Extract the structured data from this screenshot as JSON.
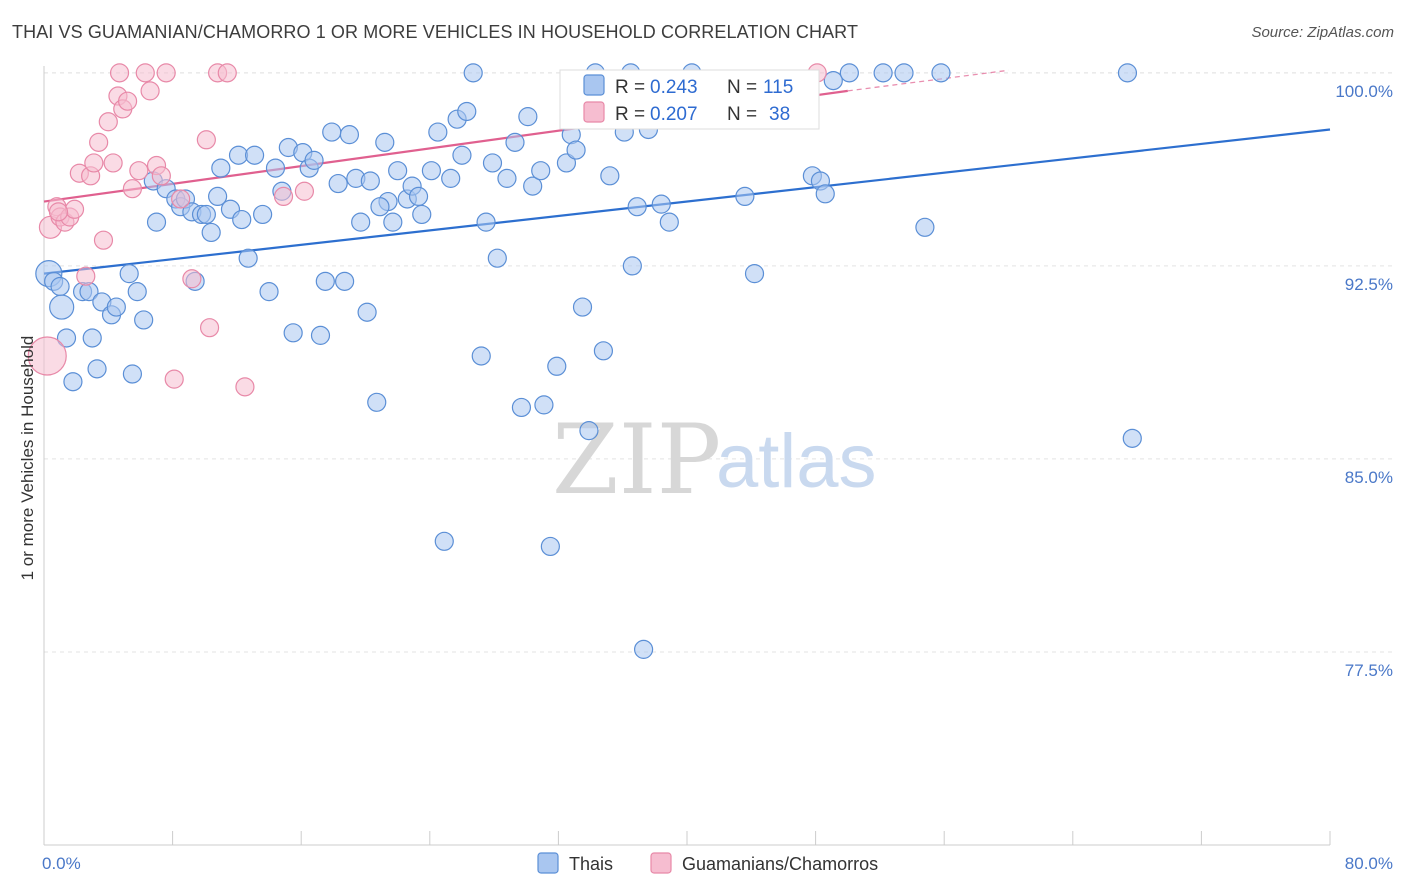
{
  "header": {
    "title": "THAI VS GUAMANIAN/CHAMORRO 1 OR MORE VEHICLES IN HOUSEHOLD CORRELATION CHART",
    "source": "Source: ZipAtlas.com"
  },
  "watermark": {
    "zip": "ZIP",
    "atlas": "atlas"
  },
  "colors": {
    "thai_fill": "#a9c6f0",
    "thai_stroke": "#5b8fd6",
    "thai_line": "#2d6fcf",
    "guam_fill": "#f6bdd0",
    "guam_stroke": "#e889a8",
    "guam_line": "#e0608f",
    "grid": "#e3e3e3",
    "axis": "#cccccc"
  },
  "stats": {
    "thai": {
      "r_label": "R =",
      "r_value": "0.243",
      "n_label": "N =",
      "n_value": "115"
    },
    "guam": {
      "r_label": "R =",
      "r_value": "0.207",
      "n_label": "N =",
      "n_value": "38"
    }
  },
  "chart_data": {
    "type": "scatter",
    "title": "THAI VS GUAMANIAN/CHAMORRO 1 OR MORE VEHICLES IN HOUSEHOLD CORRELATION CHART",
    "xlabel": "",
    "ylabel": "1 or more Vehicles in Household",
    "xlim": [
      0,
      80
    ],
    "ylim": [
      70,
      100.5
    ],
    "x_tick_labels": [
      "0.0%",
      "80.0%"
    ],
    "y_ticks": [
      77.5,
      85.0,
      92.5,
      100.0
    ],
    "y_tick_labels": [
      "77.5%",
      "85.0%",
      "92.5%",
      "100.0%"
    ],
    "legend": [
      "Thais",
      "Guamanians/Chamorros"
    ],
    "series": [
      {
        "name": "Thais",
        "trend": {
          "x0": 0,
          "y0": 92.2,
          "x1": 80,
          "y1": 97.8
        },
        "points": [
          [
            0.3,
            92.2
          ],
          [
            0.6,
            91.9
          ],
          [
            1.0,
            91.7
          ],
          [
            1.1,
            90.9
          ],
          [
            1.4,
            89.7
          ],
          [
            1.8,
            88.0
          ],
          [
            2.4,
            91.5
          ],
          [
            2.8,
            91.5
          ],
          [
            3.0,
            89.7
          ],
          [
            3.3,
            88.5
          ],
          [
            3.6,
            91.1
          ],
          [
            4.2,
            90.6
          ],
          [
            4.5,
            90.9
          ],
          [
            5.3,
            92.2
          ],
          [
            5.5,
            88.3
          ],
          [
            5.8,
            91.5
          ],
          [
            6.2,
            90.4
          ],
          [
            6.8,
            95.8
          ],
          [
            7.0,
            94.2
          ],
          [
            7.6,
            95.5
          ],
          [
            8.2,
            95.1
          ],
          [
            8.5,
            94.8
          ],
          [
            8.8,
            95.1
          ],
          [
            9.2,
            94.6
          ],
          [
            9.4,
            91.9
          ],
          [
            9.8,
            94.5
          ],
          [
            10.1,
            94.5
          ],
          [
            10.4,
            93.8
          ],
          [
            10.8,
            95.2
          ],
          [
            11.0,
            96.3
          ],
          [
            11.6,
            94.7
          ],
          [
            12.1,
            96.8
          ],
          [
            12.3,
            94.3
          ],
          [
            12.7,
            92.8
          ],
          [
            13.1,
            96.8
          ],
          [
            13.6,
            94.5
          ],
          [
            14.0,
            91.5
          ],
          [
            14.4,
            96.3
          ],
          [
            14.8,
            95.4
          ],
          [
            15.2,
            97.1
          ],
          [
            15.5,
            89.9
          ],
          [
            16.1,
            96.9
          ],
          [
            16.5,
            96.3
          ],
          [
            16.8,
            96.6
          ],
          [
            17.2,
            89.8
          ],
          [
            17.5,
            91.9
          ],
          [
            17.9,
            97.7
          ],
          [
            18.3,
            95.7
          ],
          [
            18.7,
            91.9
          ],
          [
            19.0,
            97.6
          ],
          [
            19.4,
            95.9
          ],
          [
            19.7,
            94.2
          ],
          [
            20.1,
            90.7
          ],
          [
            20.3,
            95.8
          ],
          [
            20.7,
            87.2
          ],
          [
            21.2,
            97.3
          ],
          [
            21.4,
            95.0
          ],
          [
            21.7,
            94.2
          ],
          [
            22.0,
            96.2
          ],
          [
            22.6,
            95.1
          ],
          [
            22.9,
            95.6
          ],
          [
            23.3,
            95.2
          ],
          [
            23.5,
            94.5
          ],
          [
            24.1,
            96.2
          ],
          [
            24.5,
            97.7
          ],
          [
            24.9,
            81.8
          ],
          [
            25.3,
            95.9
          ],
          [
            25.7,
            98.2
          ],
          [
            26.0,
            96.8
          ],
          [
            26.3,
            98.5
          ],
          [
            26.7,
            100.0
          ],
          [
            27.2,
            89.0
          ],
          [
            27.5,
            94.2
          ],
          [
            27.9,
            96.5
          ],
          [
            28.2,
            92.8
          ],
          [
            28.8,
            95.9
          ],
          [
            29.3,
            97.3
          ],
          [
            29.7,
            87.0
          ],
          [
            30.1,
            98.3
          ],
          [
            30.4,
            95.6
          ],
          [
            30.9,
            96.2
          ],
          [
            31.1,
            87.1
          ],
          [
            31.5,
            81.6
          ],
          [
            31.9,
            88.6
          ],
          [
            32.5,
            96.5
          ],
          [
            32.8,
            97.6
          ],
          [
            33.1,
            97.0
          ],
          [
            33.5,
            90.9
          ],
          [
            33.9,
            86.1
          ],
          [
            34.3,
            100.0
          ],
          [
            34.8,
            89.2
          ],
          [
            35.2,
            96.0
          ],
          [
            36.1,
            97.7
          ],
          [
            36.6,
            92.5
          ],
          [
            36.9,
            94.8
          ],
          [
            37.3,
            77.6
          ],
          [
            37.6,
            97.8
          ],
          [
            38.4,
            94.9
          ],
          [
            38.9,
            94.2
          ],
          [
            40.3,
            100.0
          ],
          [
            43.6,
            95.2
          ],
          [
            44.2,
            92.2
          ],
          [
            47.8,
            96.0
          ],
          [
            48.3,
            95.8
          ],
          [
            48.6,
            95.3
          ],
          [
            49.1,
            99.7
          ],
          [
            50.1,
            100.0
          ],
          [
            52.2,
            100.0
          ],
          [
            53.5,
            100.0
          ],
          [
            54.8,
            94.0
          ],
          [
            55.8,
            100.0
          ],
          [
            67.4,
            100.0
          ],
          [
            67.7,
            85.8
          ],
          [
            36.5,
            100.0
          ],
          [
            20.9,
            94.8
          ]
        ]
      },
      {
        "name": "Guamanians/Chamorros",
        "trend": {
          "x0": 0,
          "y0": 95.0,
          "x1": 50,
          "y1": 99.3,
          "dash_to_x": 60,
          "dash_to_y": 100.1
        },
        "points": [
          [
            0.2,
            89.0
          ],
          [
            0.4,
            94.0
          ],
          [
            0.8,
            94.8
          ],
          [
            1.0,
            94.4
          ],
          [
            1.3,
            94.2
          ],
          [
            1.6,
            94.4
          ],
          [
            1.9,
            94.7
          ],
          [
            2.2,
            96.1
          ],
          [
            2.6,
            92.1
          ],
          [
            2.9,
            96.0
          ],
          [
            3.1,
            96.5
          ],
          [
            3.4,
            97.3
          ],
          [
            3.7,
            93.5
          ],
          [
            4.0,
            98.1
          ],
          [
            4.3,
            96.5
          ],
          [
            4.6,
            99.1
          ],
          [
            4.9,
            98.6
          ],
          [
            5.2,
            98.9
          ],
          [
            5.5,
            95.5
          ],
          [
            5.9,
            96.2
          ],
          [
            6.3,
            100.0
          ],
          [
            6.6,
            99.3
          ],
          [
            7.0,
            96.4
          ],
          [
            7.3,
            96.0
          ],
          [
            7.6,
            100.0
          ],
          [
            8.1,
            88.1
          ],
          [
            8.5,
            95.1
          ],
          [
            9.2,
            92.0
          ],
          [
            10.1,
            97.4
          ],
          [
            10.3,
            90.1
          ],
          [
            10.8,
            100.0
          ],
          [
            11.4,
            100.0
          ],
          [
            12.5,
            87.8
          ],
          [
            14.9,
            95.2
          ],
          [
            16.2,
            95.4
          ],
          [
            48.1,
            100.0
          ],
          [
            4.7,
            100.0
          ],
          [
            0.9,
            94.6
          ]
        ]
      }
    ]
  }
}
